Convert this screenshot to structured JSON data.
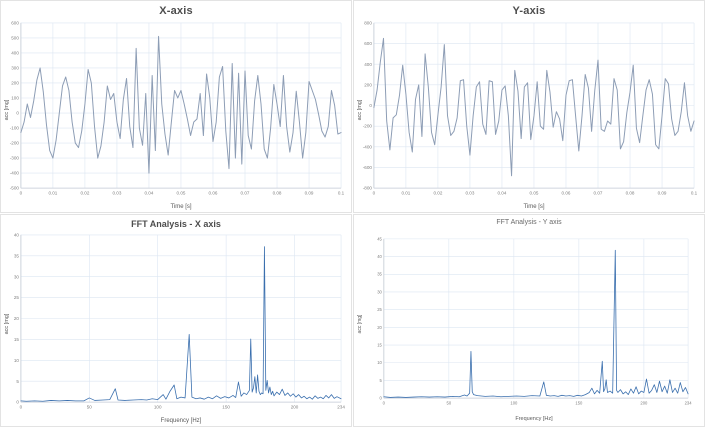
{
  "colors": {
    "background": "#ffffff",
    "panel_border": "#e3e3e3",
    "grid_line": "#dce6f2",
    "axis_line": "#c3cad4",
    "tick_text": "#7f7f7f",
    "title_text": "#4d4d4d",
    "time_line_color": "#8d9db5",
    "fft_line_color": "#3a6fae"
  },
  "chart_data": [
    {
      "type": "line",
      "title": "X-axis",
      "xlabel": "Time [s]",
      "ylabel": "acc [mg]",
      "xlim": [
        0,
        0.1
      ],
      "ylim": [
        -500,
        600
      ],
      "grid": true,
      "legend": "none",
      "xticks": [
        0,
        0.01,
        0.02,
        0.03,
        0.04,
        0.05,
        0.06,
        0.07,
        0.08,
        0.09,
        0.1
      ],
      "xtick_labels": [
        "0",
        "0.01",
        "0.02",
        "0.03",
        "0.04",
        "0.05",
        "0.06",
        "0.07",
        "0.08",
        "0.09",
        "0.1"
      ],
      "yticks": [
        -500,
        -400,
        -300,
        -200,
        -100,
        0,
        100,
        200,
        300,
        400,
        500,
        600
      ],
      "ytick_labels": [
        "-500",
        "-400",
        "-300",
        "-200",
        "-100",
        "0",
        "100",
        "200",
        "300",
        "400",
        "500",
        "600"
      ],
      "line_color": "#8d9db5",
      "x_start": 0,
      "x_step": 0.001,
      "values": [
        -130,
        -60,
        60,
        -30,
        80,
        220,
        300,
        140,
        -80,
        -250,
        -300,
        -180,
        0,
        180,
        240,
        150,
        -60,
        -200,
        -230,
        -120,
        60,
        290,
        200,
        -90,
        -300,
        -220,
        -60,
        180,
        90,
        130,
        -60,
        -170,
        90,
        230,
        -90,
        -230,
        430,
        -100,
        -215,
        130,
        -400,
        250,
        -250,
        510,
        60,
        -140,
        -280,
        -60,
        150,
        100,
        150,
        60,
        -40,
        -150,
        -60,
        -40,
        130,
        -150,
        260,
        100,
        -190,
        -60,
        240,
        310,
        -120,
        -370,
        330,
        -300,
        265,
        -340,
        280,
        -150,
        -240,
        80,
        250,
        60,
        -240,
        -300,
        -100,
        190,
        60,
        -90,
        250,
        -90,
        -260,
        -130,
        145,
        -60,
        -300,
        -130,
        210,
        150,
        90,
        -10,
        -120,
        -160,
        -90,
        150,
        50,
        -140,
        -130
      ]
    },
    {
      "type": "line",
      "title": "Y-axis",
      "xlabel": "Time [s]",
      "ylabel": "acc [mg]",
      "xlim": [
        0,
        0.1
      ],
      "ylim": [
        -800,
        800
      ],
      "grid": true,
      "legend": "none",
      "xticks": [
        0,
        0.01,
        0.02,
        0.03,
        0.04,
        0.05,
        0.06,
        0.07,
        0.08,
        0.09,
        0.1
      ],
      "xtick_labels": [
        "0",
        "0.01",
        "0.02",
        "0.03",
        "0.04",
        "0.05",
        "0.06",
        "0.07",
        "0.08",
        "0.09",
        "0.1"
      ],
      "yticks": [
        -800,
        -600,
        -400,
        -200,
        0,
        200,
        400,
        600,
        800
      ],
      "ytick_labels": [
        "-800",
        "-600",
        "-400",
        "-200",
        "0",
        "200",
        "400",
        "600",
        "800"
      ],
      "line_color": "#8d9db5",
      "x_start": 0,
      "x_step": 0.001,
      "values": [
        -20,
        150,
        420,
        650,
        -150,
        -430,
        -120,
        -90,
        100,
        390,
        110,
        -260,
        -450,
        60,
        200,
        -300,
        500,
        180,
        -260,
        -380,
        -90,
        180,
        590,
        -100,
        -290,
        -250,
        -120,
        240,
        250,
        -200,
        -480,
        -100,
        180,
        230,
        -180,
        -280,
        240,
        230,
        -280,
        -150,
        150,
        190,
        -100,
        -680,
        340,
        140,
        -320,
        180,
        220,
        -330,
        -100,
        230,
        -200,
        -230,
        340,
        130,
        -210,
        -60,
        -130,
        -340,
        100,
        240,
        250,
        -100,
        -440,
        -100,
        300,
        170,
        -250,
        150,
        440,
        -230,
        -250,
        -150,
        -180,
        260,
        150,
        -420,
        -350,
        -70,
        130,
        390,
        -220,
        -360,
        -100,
        150,
        250,
        110,
        -380,
        -420,
        -100,
        260,
        210,
        -130,
        -290,
        -250,
        -60,
        220,
        -100,
        -250,
        -150
      ]
    },
    {
      "type": "line",
      "title": "FFT Analysis - X axis",
      "xlabel": "Frequency [Hz]",
      "ylabel": "acc [mg]",
      "xlim": [
        0,
        234
      ],
      "ylim": [
        0,
        40
      ],
      "grid": true,
      "legend": "none",
      "xticks": [
        0,
        50,
        100,
        150,
        200,
        234
      ],
      "xtick_labels": [
        "0",
        "50",
        "100",
        "150",
        "200",
        "234"
      ],
      "yticks": [
        0,
        5,
        10,
        15,
        20,
        25,
        30,
        35,
        40
      ],
      "ytick_labels": [
        "0",
        "5",
        "10",
        "15",
        "20",
        "25",
        "30",
        "35",
        "40"
      ],
      "line_color": "#3a6fae",
      "points": [
        [
          0,
          0.3
        ],
        [
          4,
          0.2
        ],
        [
          10,
          0.3
        ],
        [
          16,
          0.2
        ],
        [
          22,
          0.4
        ],
        [
          28,
          0.3
        ],
        [
          34,
          0.4
        ],
        [
          40,
          0.3
        ],
        [
          46,
          0.3
        ],
        [
          50,
          1.0
        ],
        [
          54,
          0.4
        ],
        [
          60,
          0.5
        ],
        [
          65,
          0.6
        ],
        [
          69,
          3.2
        ],
        [
          71,
          0.5
        ],
        [
          76,
          0.4
        ],
        [
          82,
          0.5
        ],
        [
          88,
          0.6
        ],
        [
          92,
          0.5
        ],
        [
          96,
          0.8
        ],
        [
          100,
          0.6
        ],
        [
          104,
          1.8
        ],
        [
          106,
          0.7
        ],
        [
          109,
          2.6
        ],
        [
          112,
          4.1
        ],
        [
          114,
          0.8
        ],
        [
          117,
          1.2
        ],
        [
          120,
          1.0
        ],
        [
          123,
          16.2
        ],
        [
          125,
          1.2
        ],
        [
          128,
          0.8
        ],
        [
          131,
          1.0
        ],
        [
          134,
          0.7
        ],
        [
          137,
          1.2
        ],
        [
          140,
          0.8
        ],
        [
          143,
          1.5
        ],
        [
          146,
          0.9
        ],
        [
          149,
          1.3
        ],
        [
          152,
          1.0
        ],
        [
          155,
          1.6
        ],
        [
          157,
          1.1
        ],
        [
          159,
          4.8
        ],
        [
          161,
          1.4
        ],
        [
          163,
          2.2
        ],
        [
          165,
          1.8
        ],
        [
          167,
          2.8
        ],
        [
          168,
          15.1
        ],
        [
          169,
          2.4
        ],
        [
          170,
          3.4
        ],
        [
          171,
          6.1
        ],
        [
          172,
          2.2
        ],
        [
          173,
          6.5
        ],
        [
          174,
          2.6
        ],
        [
          175,
          1.8
        ],
        [
          176,
          2.2
        ],
        [
          177,
          2.0
        ],
        [
          178,
          37.2
        ],
        [
          179,
          2.8
        ],
        [
          180,
          5.2
        ],
        [
          181,
          2.2
        ],
        [
          182,
          3.6
        ],
        [
          183,
          1.8
        ],
        [
          184,
          2.6
        ],
        [
          185,
          1.5
        ],
        [
          187,
          2.4
        ],
        [
          189,
          1.8
        ],
        [
          191,
          3.1
        ],
        [
          193,
          1.6
        ],
        [
          195,
          2.2
        ],
        [
          197,
          1.4
        ],
        [
          199,
          2.0
        ],
        [
          201,
          1.2
        ],
        [
          203,
          1.8
        ],
        [
          205,
          1.0
        ],
        [
          207,
          1.4
        ],
        [
          209,
          0.8
        ],
        [
          211,
          1.2
        ],
        [
          213,
          0.7
        ],
        [
          215,
          1.5
        ],
        [
          217,
          0.9
        ],
        [
          219,
          1.2
        ],
        [
          221,
          0.8
        ],
        [
          223,
          1.6
        ],
        [
          225,
          1.0
        ],
        [
          227,
          1.8
        ],
        [
          229,
          0.9
        ],
        [
          231,
          1.3
        ],
        [
          234,
          0.8
        ]
      ]
    },
    {
      "type": "line",
      "title": "FFT Analysis - Y axis",
      "xlabel": "Frequency [Hz]",
      "ylabel": "acc [mg]",
      "xlim": [
        0,
        234
      ],
      "ylim": [
        0,
        45
      ],
      "grid": true,
      "legend": "none",
      "xticks": [
        0,
        50,
        100,
        150,
        200,
        234
      ],
      "xtick_labels": [
        "0",
        "50",
        "100",
        "150",
        "200",
        "234"
      ],
      "yticks": [
        0,
        5,
        10,
        15,
        20,
        25,
        30,
        35,
        40,
        45
      ],
      "ytick_labels": [
        "0",
        "5",
        "10",
        "15",
        "20",
        "25",
        "30",
        "35",
        "40",
        "45"
      ],
      "line_color": "#3a6fae",
      "points": [
        [
          0,
          0.4
        ],
        [
          5,
          0.2
        ],
        [
          11,
          0.3
        ],
        [
          17,
          0.2
        ],
        [
          23,
          0.3
        ],
        [
          29,
          0.4
        ],
        [
          35,
          0.3
        ],
        [
          41,
          0.4
        ],
        [
          47,
          0.3
        ],
        [
          53,
          0.5
        ],
        [
          58,
          0.4
        ],
        [
          62,
          0.9
        ],
        [
          64,
          0.6
        ],
        [
          66,
          1.4
        ],
        [
          67,
          13.2
        ],
        [
          68,
          1.8
        ],
        [
          69,
          1.0
        ],
        [
          72,
          0.7
        ],
        [
          78,
          0.5
        ],
        [
          84,
          0.6
        ],
        [
          90,
          0.4
        ],
        [
          96,
          0.5
        ],
        [
          102,
          0.6
        ],
        [
          108,
          0.5
        ],
        [
          114,
          0.7
        ],
        [
          120,
          0.6
        ],
        [
          123,
          4.6
        ],
        [
          125,
          0.8
        ],
        [
          128,
          0.6
        ],
        [
          131,
          0.7
        ],
        [
          134,
          0.5
        ],
        [
          137,
          0.8
        ],
        [
          140,
          0.6
        ],
        [
          143,
          0.7
        ],
        [
          146,
          0.5
        ],
        [
          149,
          0.8
        ],
        [
          152,
          0.6
        ],
        [
          155,
          1.0
        ],
        [
          158,
          1.6
        ],
        [
          160,
          2.8
        ],
        [
          162,
          1.2
        ],
        [
          164,
          2.2
        ],
        [
          166,
          1.4
        ],
        [
          168,
          10.4
        ],
        [
          169,
          1.8
        ],
        [
          170,
          2.6
        ],
        [
          171,
          5.2
        ],
        [
          172,
          1.6
        ],
        [
          174,
          2.0
        ],
        [
          176,
          1.4
        ],
        [
          178,
          41.8
        ],
        [
          179,
          2.2
        ],
        [
          180,
          1.6
        ],
        [
          182,
          2.4
        ],
        [
          184,
          1.2
        ],
        [
          186,
          1.8
        ],
        [
          188,
          1.0
        ],
        [
          190,
          2.6
        ],
        [
          192,
          1.4
        ],
        [
          194,
          3.2
        ],
        [
          196,
          1.2
        ],
        [
          198,
          2.0
        ],
        [
          200,
          1.6
        ],
        [
          202,
          5.4
        ],
        [
          204,
          1.4
        ],
        [
          206,
          2.2
        ],
        [
          208,
          3.8
        ],
        [
          210,
          1.6
        ],
        [
          212,
          4.8
        ],
        [
          214,
          1.8
        ],
        [
          216,
          3.4
        ],
        [
          218,
          1.4
        ],
        [
          220,
          5.2
        ],
        [
          222,
          1.6
        ],
        [
          224,
          2.8
        ],
        [
          226,
          1.4
        ],
        [
          228,
          4.4
        ],
        [
          230,
          1.8
        ],
        [
          232,
          3.0
        ],
        [
          234,
          1.2
        ]
      ]
    }
  ]
}
